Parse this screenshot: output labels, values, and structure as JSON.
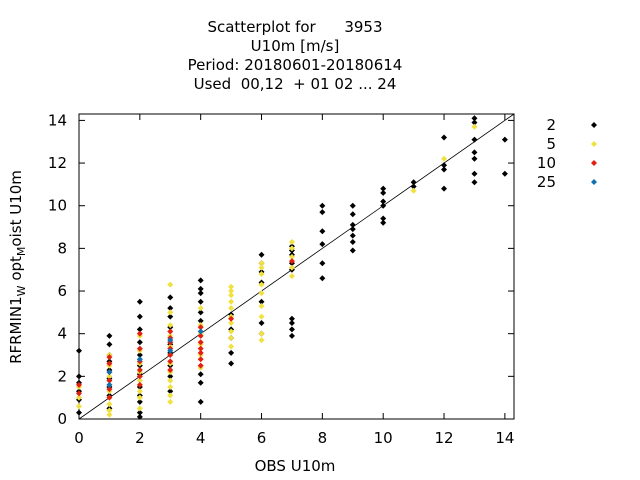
{
  "chart_data": {
    "type": "scatter",
    "title_lines": [
      "Scatterplot for      3953",
      "U10m [m/s]",
      "Period: 20180601-20180614",
      "Used  00,12  + 01 02 ... 24"
    ],
    "xlabel": "OBS U10m",
    "ylabel_parts": [
      "RFRMIN1",
      "W",
      " opt",
      "M",
      "oist U10m"
    ],
    "xlim": [
      0,
      14.3
    ],
    "ylim": [
      0,
      14.3
    ],
    "xticks": [
      0,
      2,
      4,
      6,
      8,
      10,
      12,
      14
    ],
    "yticks": [
      0,
      2,
      4,
      6,
      8,
      10,
      12,
      14
    ],
    "diagonal": true,
    "grid": false,
    "legend_position": "right",
    "series": [
      {
        "name": "2",
        "color": "#000000",
        "points": [
          [
            0,
            0.3
          ],
          [
            0,
            0.9
          ],
          [
            0,
            1.3
          ],
          [
            0,
            1.7
          ],
          [
            0,
            2.0
          ],
          [
            0,
            3.2
          ],
          [
            1,
            0.5
          ],
          [
            1,
            1.1
          ],
          [
            1,
            1.5
          ],
          [
            1,
            1.9
          ],
          [
            1,
            2.3
          ],
          [
            1,
            2.7
          ],
          [
            1,
            3.0
          ],
          [
            1,
            3.5
          ],
          [
            1,
            3.9
          ],
          [
            2,
            0.1
          ],
          [
            2,
            0.3
          ],
          [
            2,
            0.8
          ],
          [
            2,
            1.1
          ],
          [
            2,
            1.5
          ],
          [
            2,
            2.1
          ],
          [
            2,
            2.5
          ],
          [
            2,
            3.0
          ],
          [
            2,
            3.6
          ],
          [
            2,
            4.2
          ],
          [
            2,
            4.8
          ],
          [
            2,
            5.5
          ],
          [
            3,
            1.3
          ],
          [
            3,
            2.0
          ],
          [
            3,
            2.5
          ],
          [
            3,
            3.1
          ],
          [
            3,
            3.5
          ],
          [
            3,
            4.3
          ],
          [
            3,
            4.8
          ],
          [
            3,
            5.2
          ],
          [
            3,
            5.7
          ],
          [
            4,
            0.8
          ],
          [
            4,
            1.7
          ],
          [
            4,
            2.1
          ],
          [
            4,
            4.6
          ],
          [
            4,
            5.0
          ],
          [
            4,
            5.5
          ],
          [
            4,
            5.9
          ],
          [
            4,
            6.1
          ],
          [
            4,
            6.5
          ],
          [
            5,
            2.6
          ],
          [
            5,
            3.1
          ],
          [
            5,
            3.8
          ],
          [
            5,
            4.2
          ],
          [
            5,
            4.9
          ],
          [
            6,
            4.0
          ],
          [
            6,
            4.5
          ],
          [
            6,
            5.5
          ],
          [
            6,
            6.4
          ],
          [
            6,
            6.9
          ],
          [
            6,
            7.3
          ],
          [
            6,
            7.7
          ],
          [
            7,
            3.9
          ],
          [
            7,
            4.2
          ],
          [
            7,
            4.5
          ],
          [
            7,
            4.7
          ],
          [
            7,
            7.0
          ],
          [
            7,
            7.3
          ],
          [
            7,
            7.7
          ],
          [
            7,
            7.9
          ],
          [
            7,
            8.1
          ],
          [
            8,
            6.6
          ],
          [
            8,
            7.3
          ],
          [
            8,
            8.2
          ],
          [
            8,
            8.8
          ],
          [
            8,
            9.7
          ],
          [
            8,
            10.0
          ],
          [
            9,
            7.9
          ],
          [
            9,
            8.3
          ],
          [
            9,
            8.6
          ],
          [
            9,
            8.9
          ],
          [
            9,
            9.1
          ],
          [
            9,
            9.6
          ],
          [
            9,
            10.0
          ],
          [
            10,
            9.2
          ],
          [
            10,
            9.4
          ],
          [
            10,
            10.0
          ],
          [
            10,
            10.2
          ],
          [
            10,
            10.6
          ],
          [
            10,
            10.8
          ],
          [
            11,
            10.9
          ],
          [
            11,
            11.1
          ],
          [
            12,
            10.8
          ],
          [
            12,
            11.7
          ],
          [
            12,
            11.9
          ],
          [
            12,
            13.2
          ],
          [
            13,
            11.1
          ],
          [
            13,
            11.5
          ],
          [
            13,
            12.2
          ],
          [
            13,
            12.5
          ],
          [
            13,
            13.1
          ],
          [
            13,
            13.9
          ],
          [
            13,
            14.1
          ],
          [
            14,
            11.5
          ],
          [
            14,
            13.1
          ]
        ]
      },
      {
        "name": "5",
        "color": "#f0e040",
        "points": [
          [
            0,
            0.6
          ],
          [
            0,
            1.0
          ],
          [
            0,
            1.5
          ],
          [
            1,
            0.2
          ],
          [
            1,
            0.4
          ],
          [
            1,
            0.7
          ],
          [
            1,
            1.0
          ],
          [
            1,
            1.3
          ],
          [
            1,
            1.6
          ],
          [
            1,
            2.0
          ],
          [
            1,
            2.5
          ],
          [
            1,
            3.0
          ],
          [
            2,
            0.5
          ],
          [
            2,
            1.0
          ],
          [
            2,
            1.3
          ],
          [
            2,
            1.8
          ],
          [
            2,
            2.2
          ],
          [
            2,
            2.6
          ],
          [
            2,
            3.2
          ],
          [
            2,
            3.9
          ],
          [
            3,
            0.8
          ],
          [
            3,
            1.1
          ],
          [
            3,
            1.5
          ],
          [
            3,
            1.8
          ],
          [
            3,
            2.2
          ],
          [
            3,
            2.6
          ],
          [
            3,
            3.0
          ],
          [
            3,
            3.4
          ],
          [
            3,
            3.9
          ],
          [
            3,
            4.4
          ],
          [
            3,
            5.0
          ],
          [
            3,
            6.3
          ],
          [
            4,
            2.4
          ],
          [
            4,
            3.0
          ],
          [
            4,
            3.5
          ],
          [
            4,
            4.0
          ],
          [
            4,
            4.4
          ],
          [
            4,
            5.2
          ],
          [
            5,
            3.4
          ],
          [
            5,
            3.8
          ],
          [
            5,
            4.1
          ],
          [
            5,
            4.5
          ],
          [
            5,
            4.8
          ],
          [
            5,
            5.2
          ],
          [
            5,
            5.5
          ],
          [
            5,
            5.8
          ],
          [
            5,
            6.0
          ],
          [
            5,
            6.2
          ],
          [
            6,
            3.7
          ],
          [
            6,
            4.0
          ],
          [
            6,
            4.8
          ],
          [
            6,
            5.3
          ],
          [
            6,
            5.9
          ],
          [
            6,
            6.3
          ],
          [
            6,
            6.8
          ],
          [
            6,
            7.1
          ],
          [
            6,
            7.3
          ],
          [
            7,
            6.7
          ],
          [
            7,
            7.1
          ],
          [
            7,
            7.6
          ],
          [
            7,
            8.0
          ],
          [
            7,
            8.3
          ],
          [
            11,
            10.7
          ],
          [
            12,
            12.2
          ],
          [
            13,
            13.7
          ]
        ]
      },
      {
        "name": "10",
        "color": "#e02010",
        "points": [
          [
            0,
            1.2
          ],
          [
            0,
            1.6
          ],
          [
            1,
            1.0
          ],
          [
            1,
            1.4
          ],
          [
            1,
            1.8
          ],
          [
            1,
            2.2
          ],
          [
            1,
            2.6
          ],
          [
            1,
            2.9
          ],
          [
            2,
            1.6
          ],
          [
            2,
            2.0
          ],
          [
            2,
            2.3
          ],
          [
            2,
            2.7
          ],
          [
            2,
            3.3
          ],
          [
            2,
            4.0
          ],
          [
            3,
            2.3
          ],
          [
            3,
            2.7
          ],
          [
            3,
            3.0
          ],
          [
            3,
            3.3
          ],
          [
            3,
            3.6
          ],
          [
            3,
            3.8
          ],
          [
            3,
            4.1
          ],
          [
            4,
            2.5
          ],
          [
            4,
            2.8
          ],
          [
            4,
            3.1
          ],
          [
            4,
            3.3
          ],
          [
            4,
            3.6
          ],
          [
            4,
            3.9
          ],
          [
            4,
            4.3
          ],
          [
            5,
            4.7
          ],
          [
            7,
            7.4
          ]
        ]
      },
      {
        "name": "25",
        "color": "#1070b0",
        "points": [
          [
            1,
            1.6
          ],
          [
            1,
            2.2
          ],
          [
            2,
            2.8
          ],
          [
            3,
            3.2
          ],
          [
            3,
            3.7
          ],
          [
            4,
            4.1
          ]
        ]
      }
    ]
  }
}
